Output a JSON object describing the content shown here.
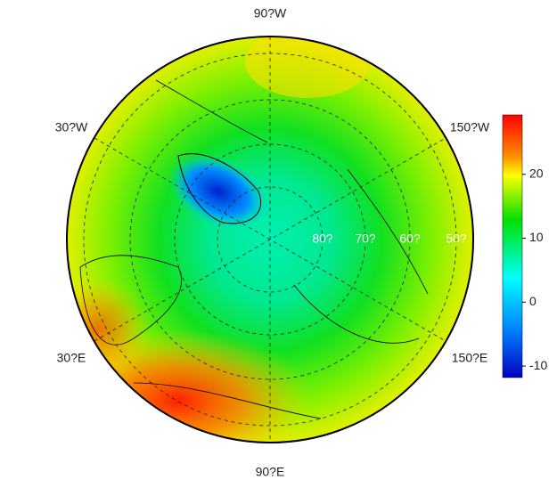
{
  "map": {
    "longitude_labels": {
      "top": "90?W",
      "upper_left": "30?W",
      "upper_right": "150?W",
      "lower_left": "30?E",
      "lower_right": "150?E",
      "bottom": "90?E"
    },
    "latitude_labels": [
      "80?",
      "70?",
      "60?",
      "50?"
    ]
  },
  "colorbar": {
    "ylim": [
      -11.8,
      29.3
    ],
    "yticks": [
      -10,
      0,
      10,
      20
    ]
  }
}
